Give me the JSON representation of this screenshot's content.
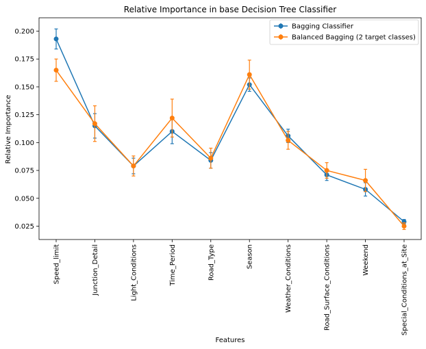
{
  "chart_data": {
    "type": "line",
    "title": "Relative Importance in base Decision Tree Classifier",
    "xlabel": "Features",
    "ylabel": "Relative Importance",
    "categories": [
      "Speed_limit",
      "Junction_Detail",
      "Light_Conditions",
      "Time_Period",
      "Road_Type",
      "Season",
      "Weather_Conditions",
      "Road_Surface_Conditions",
      "Weekend",
      "Special_Conditions_at_Site"
    ],
    "yticks": [
      "0.025",
      "0.050",
      "0.075",
      "0.100",
      "0.125",
      "0.150",
      "0.175",
      "0.200"
    ],
    "ylim": [
      0.013,
      0.212
    ],
    "legend_position": "top-right",
    "grid": false,
    "series": [
      {
        "name": "Bagging Classifier",
        "color": "#1f77b4",
        "values": [
          0.193,
          0.115,
          0.079,
          0.11,
          0.084,
          0.152,
          0.106,
          0.071,
          0.058,
          0.029
        ],
        "errors": [
          0.009,
          0.011,
          0.007,
          0.011,
          0.007,
          0.006,
          0.006,
          0.005,
          0.006,
          0.002
        ]
      },
      {
        "name": "Balanced Bagging (2 target classes)",
        "color": "#ff7f0e",
        "values": [
          0.165,
          0.117,
          0.079,
          0.122,
          0.086,
          0.161,
          0.102,
          0.075,
          0.066,
          0.025
        ],
        "errors": [
          0.01,
          0.016,
          0.009,
          0.017,
          0.009,
          0.013,
          0.008,
          0.007,
          0.01,
          0.003
        ]
      }
    ]
  }
}
